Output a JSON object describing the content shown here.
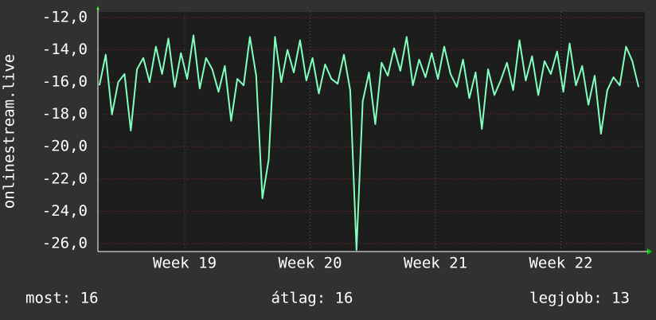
{
  "chart_data": {
    "type": "line",
    "y_label": "onlinestream.live",
    "x": [
      18.32,
      18.37,
      18.42,
      18.47,
      18.52,
      18.57,
      18.62,
      18.67,
      18.72,
      18.77,
      18.82,
      18.87,
      18.92,
      18.97,
      19.02,
      19.07,
      19.12,
      19.17,
      19.22,
      19.27,
      19.32,
      19.37,
      19.42,
      19.47,
      19.52,
      19.57,
      19.62,
      19.67,
      19.72,
      19.77,
      19.82,
      19.87,
      19.92,
      19.97,
      20.02,
      20.07,
      20.12,
      20.17,
      20.22,
      20.27,
      20.32,
      20.37,
      20.42,
      20.47,
      20.52,
      20.57,
      20.62,
      20.67,
      20.72,
      20.77,
      20.82,
      20.87,
      20.92,
      20.97,
      21.02,
      21.07,
      21.12,
      21.17,
      21.22,
      21.27,
      21.32,
      21.37,
      21.42,
      21.47,
      21.52,
      21.57,
      21.62,
      21.67,
      21.72,
      21.77,
      21.82,
      21.87,
      21.92,
      21.97,
      22.02,
      22.07,
      22.12,
      22.17,
      22.22,
      22.27,
      22.32,
      22.37,
      22.42,
      22.47,
      22.52,
      22.57,
      22.62
    ],
    "series": [
      {
        "color": "#80ffbf",
        "values": [
          -16.2,
          -14.3,
          -18,
          -16,
          -15.5,
          -19,
          -15.2,
          -14.5,
          -16,
          -13.8,
          -15.5,
          -13.3,
          -16.3,
          -14.2,
          -15.8,
          -13.1,
          -16.4,
          -14.5,
          -15.2,
          -16.6,
          -15,
          -18.4,
          -15.8,
          -16.2,
          -13.2,
          -15.6,
          -23.2,
          -20.8,
          -13.2,
          -16,
          -14,
          -15.4,
          -13.4,
          -15.9,
          -14.5,
          -16.7,
          -14.9,
          -15.8,
          -16.1,
          -14.3,
          -16.5,
          -26.4,
          -17.2,
          -15.4,
          -18.6,
          -14.8,
          -15.6,
          -13.9,
          -15.3,
          -13.2,
          -16.2,
          -14.6,
          -15.7,
          -14.2,
          -15.8,
          -13.8,
          -15.5,
          -16.3,
          -14.6,
          -17,
          -15.4,
          -18.9,
          -15.2,
          -16.8,
          -15.9,
          -14.8,
          -16.5,
          -13.4,
          -15.9,
          -14.4,
          -16.8,
          -14.7,
          -15.5,
          -14.1,
          -16.6,
          -13.6,
          -16.2,
          -15,
          -17.4,
          -15.6,
          -19.2,
          -16.5,
          -15.7,
          -16.2,
          -13.8,
          -14.7,
          -16.3
        ]
      }
    ],
    "xlim": [
      18.308,
      22.67
    ],
    "xticks": [
      {
        "value": 19,
        "label": "Week 19"
      },
      {
        "value": 20,
        "label": "Week 20"
      },
      {
        "value": 21,
        "label": "Week 21"
      },
      {
        "value": 22,
        "label": "Week 22"
      }
    ],
    "ylim": [
      -26.5,
      -11.65
    ],
    "yticks": [
      {
        "value": -12,
        "label": "-12,0"
      },
      {
        "value": -14,
        "label": "-14,0"
      },
      {
        "value": -16,
        "label": "-16,0"
      },
      {
        "value": -18,
        "label": "-18,0"
      },
      {
        "value": -20,
        "label": "-20,0"
      },
      {
        "value": -22,
        "label": "-22,0"
      },
      {
        "value": -24,
        "label": "-24,0"
      },
      {
        "value": -26,
        "label": "-26,0"
      }
    ],
    "grid": true,
    "footer": [
      "most: 16",
      "átlag: 16",
      "legjobb: 13"
    ]
  }
}
